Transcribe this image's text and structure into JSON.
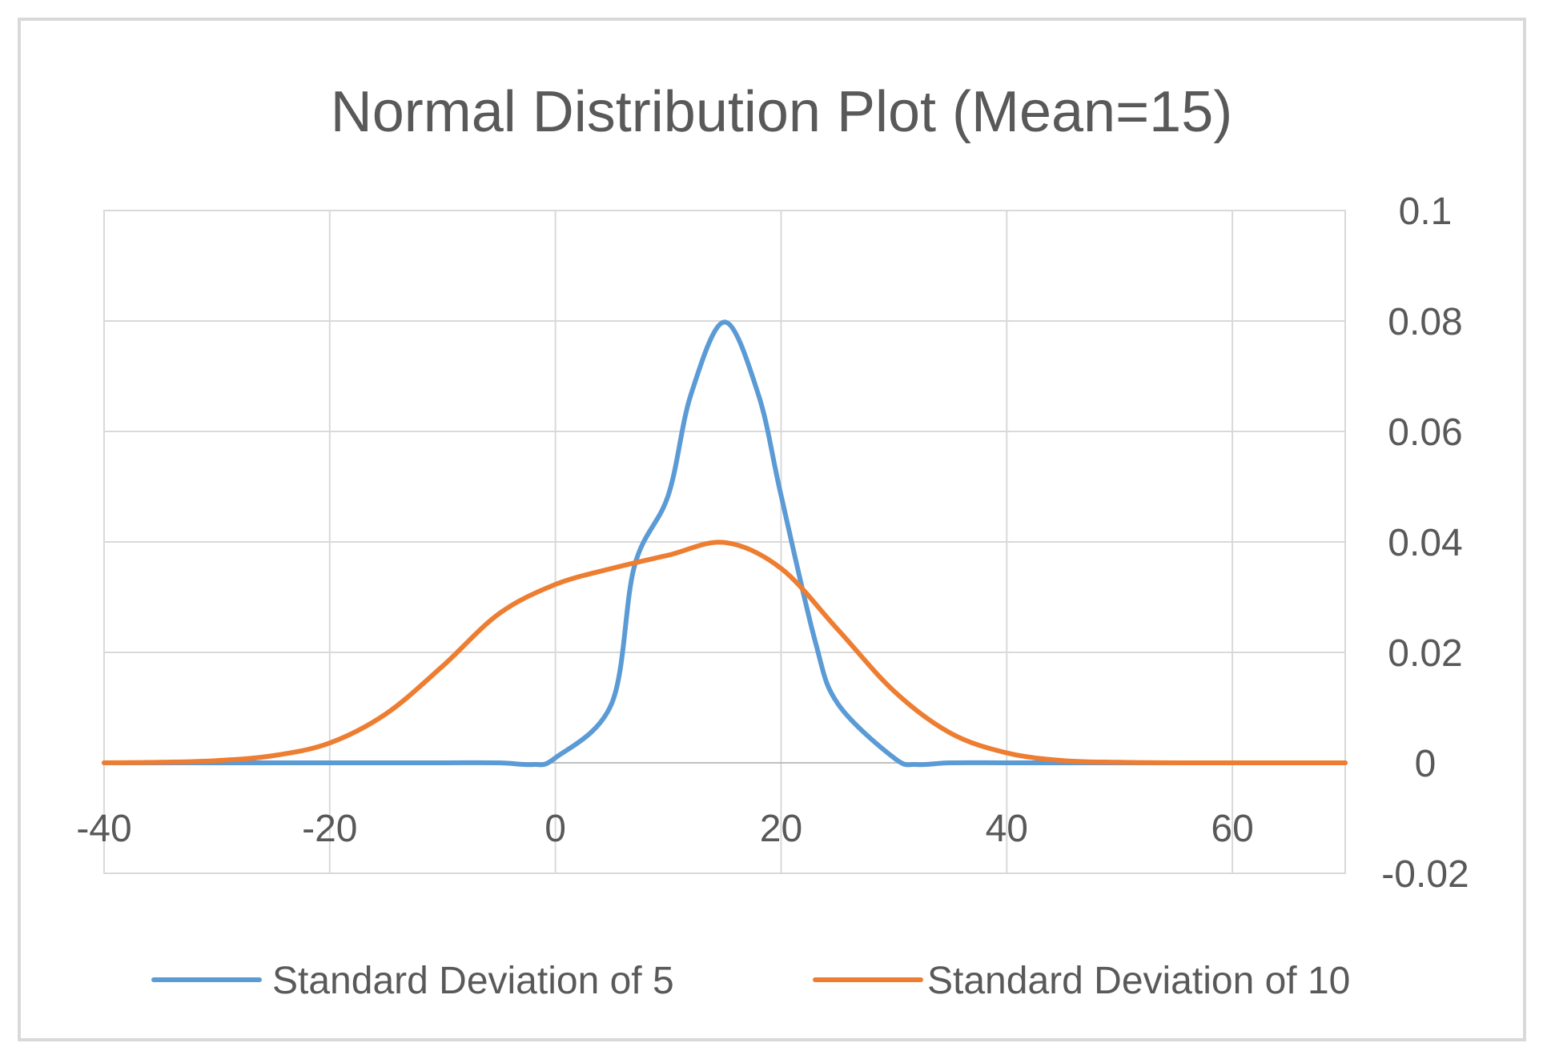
{
  "chart_data": {
    "type": "line",
    "title": "Normal Distribution Plot (Mean=15)",
    "xlabel": "",
    "ylabel": "",
    "xlim": [
      -40,
      70
    ],
    "ylim": [
      -0.02,
      0.1
    ],
    "x_ticks": [
      -40,
      -20,
      0,
      20,
      40,
      60
    ],
    "x_tick_labels": [
      "-40",
      "-20",
      "0",
      "20",
      "40",
      "60"
    ],
    "y_ticks": [
      0.1,
      0.08,
      0.06,
      0.04,
      0.02,
      0,
      -0.02
    ],
    "y_tick_labels": [
      "0.1",
      "0.08",
      "0.06",
      "0.04",
      "0.02",
      "0",
      "-0.02"
    ],
    "x_gridlines": [
      -20,
      0,
      20,
      40,
      60
    ],
    "y_gridlines": [
      0.1,
      0.08,
      0.06,
      0.04,
      0.02,
      -0.02
    ],
    "y_axis_side": "right",
    "grid": true,
    "legend_position": "bottom",
    "series": [
      {
        "name": "Standard Deviation of 5",
        "color": "#5b9bd5",
        "x": [
          -40,
          -35,
          -30,
          -25,
          -20,
          -15,
          -10,
          -5,
          -2,
          0,
          5,
          7,
          10,
          12,
          15,
          18,
          20,
          23,
          25,
          30,
          32,
          35,
          40,
          45,
          50,
          55,
          60,
          65,
          70
        ],
        "values": [
          0,
          0,
          0,
          0,
          0,
          0,
          0,
          0,
          -0.0003,
          0.0009,
          0.0108,
          0.0356,
          0.0484,
          0.0666,
          0.0798,
          0.0666,
          0.0484,
          0.0222,
          0.0108,
          0.0009,
          -0.0003,
          0,
          0,
          0,
          0,
          0,
          0,
          0,
          0
        ]
      },
      {
        "name": "Standard Deviation of 10",
        "color": "#ed7d31",
        "x": [
          -40,
          -35,
          -30,
          -25,
          -20,
          -15,
          -10,
          -5,
          0,
          5,
          10,
          15,
          20,
          25,
          30,
          35,
          40,
          45,
          50,
          55,
          60,
          65,
          70
        ],
        "values": [
          0.0,
          0.0001,
          0.0004,
          0.0013,
          0.0036,
          0.0089,
          0.0175,
          0.027,
          0.0323,
          0.0352,
          0.0376,
          0.0399,
          0.0352,
          0.0242,
          0.013,
          0.0054,
          0.0018,
          0.0004,
          0.0001,
          0.0,
          0.0,
          0.0,
          0.0
        ]
      }
    ]
  }
}
